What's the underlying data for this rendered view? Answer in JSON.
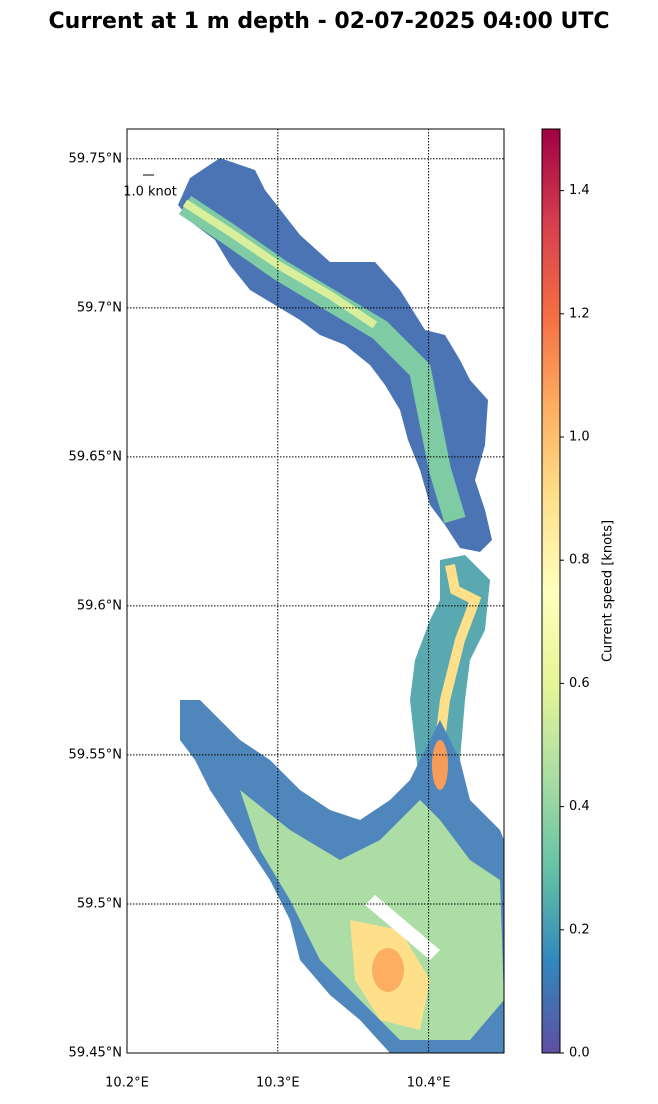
{
  "chart_data": {
    "type": "map",
    "title": "Current at 1 m depth - 02-07-2025 04:00 UTC",
    "xlim": [
      10.2,
      10.45
    ],
    "ylim": [
      59.45,
      59.76
    ],
    "xticks": [
      {
        "value": 10.2,
        "label": "10.2°E"
      },
      {
        "value": 10.3,
        "label": "10.3°E"
      },
      {
        "value": 10.4,
        "label": "10.4°E"
      }
    ],
    "yticks": [
      {
        "value": 59.45,
        "label": "59.45°N"
      },
      {
        "value": 59.5,
        "label": "59.5°N"
      },
      {
        "value": 59.55,
        "label": "59.55°N"
      },
      {
        "value": 59.6,
        "label": "59.6°N"
      },
      {
        "value": 59.65,
        "label": "59.65°N"
      },
      {
        "value": 59.7,
        "label": "59.7°N"
      },
      {
        "value": 59.75,
        "label": "59.75°N"
      }
    ],
    "grid": true,
    "quiver_key": "1.0 knot",
    "colorbar": {
      "label": "Current speed [knots]",
      "lim": [
        0,
        1.5
      ],
      "ticks": [
        {
          "value": 0,
          "label": "0.0"
        },
        0.2,
        0.4,
        0.6,
        0.8,
        {
          "value": 1,
          "label": "1.0"
        },
        1.2,
        1.4
      ]
    }
  }
}
